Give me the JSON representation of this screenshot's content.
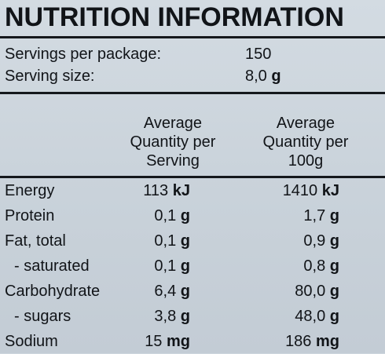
{
  "title": "NUTRITION INFORMATION",
  "servings": {
    "per_package_label": "Servings per package:",
    "per_package_value": "150",
    "size_label": "Serving size:",
    "size_number": "8,0",
    "size_unit": "g"
  },
  "columns": {
    "per_serving": [
      "Average",
      "Quantity per",
      "Serving"
    ],
    "per_100g": [
      "Average",
      "Quantity per",
      "100g"
    ]
  },
  "rows": [
    {
      "name": "Energy",
      "serving_num": "113",
      "serving_unit": "kJ",
      "per100_num": "1410",
      "per100_unit": "kJ"
    },
    {
      "name": "Protein",
      "serving_num": "0,1",
      "serving_unit": "g",
      "per100_num": "1,7",
      "per100_unit": "g"
    },
    {
      "name": "Fat, total",
      "serving_num": "0,1",
      "serving_unit": "g",
      "per100_num": "0,9",
      "per100_unit": "g"
    },
    {
      "name": "- saturated",
      "serving_num": "0,1",
      "serving_unit": "g",
      "per100_num": "0,8",
      "per100_unit": "g"
    },
    {
      "name": "Carbohydrate",
      "serving_num": "6,4",
      "serving_unit": "g",
      "per100_num": "80,0",
      "per100_unit": "g"
    },
    {
      "name": "- sugars",
      "serving_num": "3,8",
      "serving_unit": "g",
      "per100_num": "48,0",
      "per100_unit": "g"
    },
    {
      "name": "Sodium",
      "serving_num": "15",
      "serving_unit": "mg",
      "per100_num": "186",
      "per100_unit": "mg"
    }
  ]
}
